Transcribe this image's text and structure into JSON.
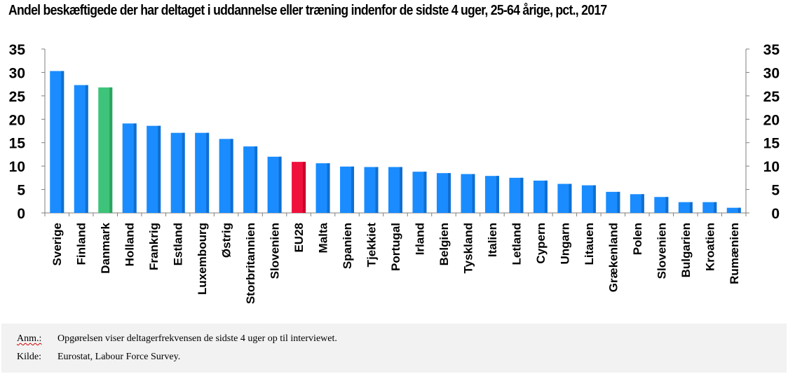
{
  "chart_data": {
    "type": "bar",
    "title": "Andel beskæftigede der har deltaget i uddannelse eller træning indenfor de sidste 4 uger, 25-64 årige, pct., 2017",
    "categories": [
      "Sverige",
      "Finland",
      "Danmark",
      "Holland",
      "Frankrig",
      "Estland",
      "Luxembourg",
      "Østrig",
      "Storbritannien",
      "Slovenien",
      "EU28",
      "Malta",
      "Spanien",
      "Tjekkiet",
      "Portugal",
      "Irland",
      "Belgien",
      "Tyskland",
      "Italien",
      "Letland",
      "Cypern",
      "Ungarn",
      "Litauen",
      "Grækenland",
      "Polen",
      "Slovenien",
      "Bulgarien",
      "Kroatien",
      "Rumænien"
    ],
    "values": [
      30.3,
      27.3,
      26.8,
      19.1,
      18.6,
      17.1,
      17.1,
      15.8,
      14.2,
      12.0,
      10.9,
      10.6,
      9.9,
      9.8,
      9.8,
      8.8,
      8.5,
      8.3,
      7.9,
      7.5,
      6.9,
      6.2,
      5.9,
      4.5,
      4.0,
      3.4,
      2.3,
      2.3,
      1.1
    ],
    "ylim": [
      0,
      35
    ],
    "yticks": [
      0,
      5,
      10,
      15,
      20,
      25,
      30,
      35
    ],
    "secondary_y_axis": true,
    "grid": false,
    "legend": "none",
    "xlabel": "",
    "ylabel": "",
    "colors": {
      "default": "#1a8cff",
      "default_shade": "#0f6fd1",
      "highlight_country": "#3ec47a",
      "highlight_country_shade": "#2aa45f",
      "highlight_eu": "#f0103c",
      "highlight_eu_shade": "#c8002c"
    },
    "highlights": {
      "Danmark": "highlight_country",
      "EU28": "highlight_eu"
    }
  },
  "notes": {
    "anm_key": "Anm.:",
    "anm_text": "Opgørelsen viser deltagerfrekvensen de sidste 4 uger op til interviewet.",
    "source_key": "Kilde:",
    "source_text": "Eurostat, Labour Force Survey."
  }
}
